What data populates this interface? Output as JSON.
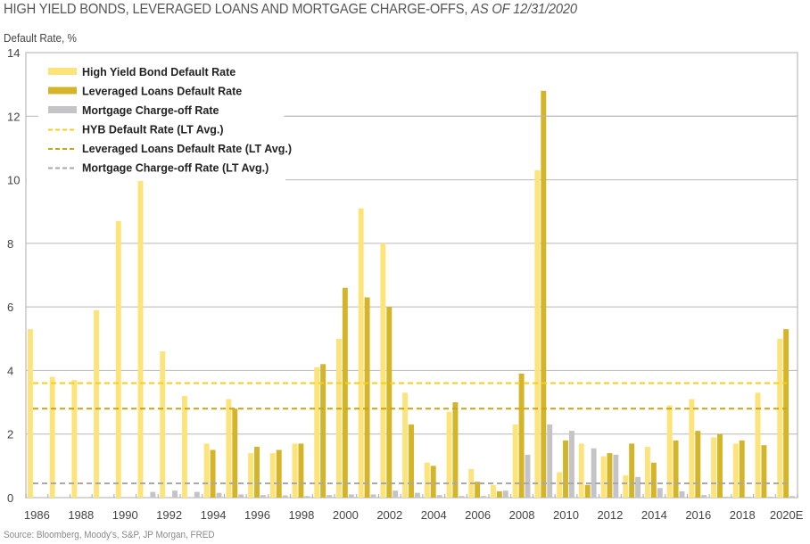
{
  "title_main": "HIGH YIELD BONDS, LEVERAGED LOANS AND MORTGAGE CHARGE-OFFS,",
  "title_date": "AS OF 12/31/2020",
  "source": "Source: Bloomberg, Moody's, S&P, JP Morgan, FRED",
  "colors": {
    "hyb": "#fde47a",
    "loans": "#d4b52a",
    "mortgage": "#c4c4c8",
    "hyb_avg": "#f5cf1a",
    "loans_avg": "#c9a515",
    "mortgage_avg": "#a9a9ad"
  },
  "chart_data": {
    "type": "bar",
    "title": "HIGH YIELD BONDS, LEVERAGED LOANS AND MORTGAGE CHARGE-OFFS, AS OF 12/31/2020",
    "xlabel": "",
    "ylabel": "Default Rate, %",
    "ylim": [
      0,
      14
    ],
    "yticks": [
      0,
      2,
      4,
      6,
      8,
      10,
      12,
      14
    ],
    "grid": true,
    "legend_position": "top-left",
    "categories": [
      "1986",
      "1987",
      "1988",
      "1989",
      "1990",
      "1991",
      "1992",
      "1993",
      "1994",
      "1995",
      "1996",
      "1997",
      "1998",
      "1999",
      "2000",
      "2001",
      "2002",
      "2003",
      "2004",
      "2005",
      "2006",
      "2007",
      "2008",
      "2009",
      "2010",
      "2011",
      "2012",
      "2013",
      "2014",
      "2015",
      "2016",
      "2017",
      "2018",
      "2019",
      "2020E"
    ],
    "xtick_labels": [
      "1986",
      "1988",
      "1990",
      "1992",
      "1994",
      "1996",
      "1998",
      "2000",
      "2002",
      "2004",
      "2006",
      "2008",
      "2010",
      "2012",
      "2014",
      "2016",
      "2018",
      "2020E"
    ],
    "series": [
      {
        "name": "High Yield Bond Default Rate",
        "values": [
          5.3,
          3.8,
          3.7,
          5.9,
          8.7,
          10.1,
          4.6,
          3.2,
          1.7,
          3.1,
          1.4,
          1.4,
          1.7,
          4.1,
          5.0,
          9.1,
          8.0,
          3.3,
          1.1,
          2.7,
          0.9,
          0.4,
          2.3,
          10.3,
          0.8,
          1.7,
          1.3,
          0.7,
          1.6,
          2.9,
          3.1,
          1.9,
          1.7,
          3.3,
          5.0
        ]
      },
      {
        "name": "Leveraged Loans Default Rate",
        "values": [
          null,
          null,
          null,
          null,
          null,
          null,
          null,
          null,
          1.5,
          2.8,
          1.6,
          1.5,
          1.7,
          4.2,
          6.6,
          6.3,
          6.0,
          2.3,
          1.0,
          3.0,
          0.5,
          0.2,
          3.9,
          12.8,
          1.8,
          0.4,
          1.4,
          1.7,
          1.1,
          1.8,
          2.1,
          2.0,
          1.8,
          1.65,
          5.3
        ]
      },
      {
        "name": "Mortgage Charge-off Rate",
        "values": [
          null,
          null,
          null,
          null,
          null,
          0.18,
          0.22,
          0.18,
          0.15,
          0.1,
          0.08,
          0.07,
          0.05,
          0.08,
          0.1,
          0.1,
          0.22,
          0.15,
          0.08,
          0.05,
          0.05,
          0.22,
          1.35,
          2.3,
          2.1,
          1.55,
          1.35,
          0.65,
          0.3,
          0.2,
          0.08,
          0.03,
          0.03,
          0.03,
          0.05
        ]
      }
    ],
    "reference_lines": [
      {
        "name": "HYB Default Rate (LT Avg.)",
        "value": 3.6
      },
      {
        "name": "Leveraged Loans Default Rate (LT Avg.)",
        "value": 2.8
      },
      {
        "name": "Mortgage Charge-off Rate (LT Avg.)",
        "value": 0.45
      }
    ]
  }
}
